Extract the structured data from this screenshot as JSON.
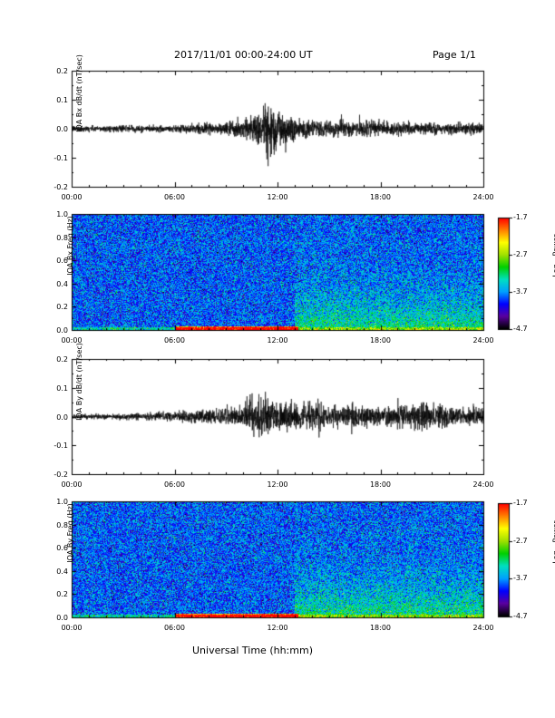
{
  "header": {
    "title": "2017/11/01  00:00-24:00 UT",
    "page": "Page 1/1"
  },
  "footer": {
    "xlabel": "Universal Time (hh:mm)",
    "side_note": "sm1-x1 Wed 23 Aug 2023 09:58:25 PM EST"
  },
  "colorbar": {
    "label": "Log₁₀ Power",
    "ticks": [
      "-1.7",
      "-2.7",
      "-3.7",
      "-4.7"
    ],
    "colors": [
      "#000000",
      "#5a00a0",
      "#0000ff",
      "#00a0ff",
      "#00e0c0",
      "#00d000",
      "#a0e000",
      "#ffff00",
      "#ff8000",
      "#ff0000"
    ]
  },
  "chart_data": [
    {
      "type": "line",
      "title": "",
      "ylabel": "IQA Bx dB/dt (nT/sec)",
      "xlabel": "",
      "x_ticks": [
        "00:00",
        "06:00",
        "12:00",
        "18:00",
        "24:00"
      ],
      "xlim_hours": [
        0,
        24
      ],
      "y_ticks": [
        "0.2",
        "0.1",
        "0.0",
        "-0.1",
        "-0.2"
      ],
      "ylim": [
        -0.2,
        0.2
      ],
      "envelope": {
        "hours": [
          0,
          2,
          4,
          6,
          8,
          9,
          10,
          10.5,
          11,
          11.5,
          12,
          12.5,
          13,
          14,
          15,
          16,
          17,
          18,
          19,
          20,
          21,
          22,
          23,
          24
        ],
        "amplitude": [
          0.012,
          0.012,
          0.012,
          0.014,
          0.018,
          0.025,
          0.035,
          0.06,
          0.08,
          0.1,
          0.09,
          0.07,
          0.05,
          0.03,
          0.03,
          0.03,
          0.03,
          0.028,
          0.025,
          0.025,
          0.022,
          0.022,
          0.02,
          0.02
        ]
      },
      "color": "#000000"
    },
    {
      "type": "heatmap",
      "ylabel": "IQA Bx Freq (Hz)",
      "x_ticks": [
        "00:00",
        "06:00",
        "12:00",
        "18:00",
        "24:00"
      ],
      "xlim_hours": [
        0,
        24
      ],
      "y_ticks": [
        "1.0",
        "0.8",
        "0.6",
        "0.4",
        "0.2",
        "0.0"
      ],
      "ylim": [
        0,
        1.0
      ],
      "zlim": [
        -4.7,
        -1.7
      ],
      "features": [
        {
          "hours": [
            6,
            13
          ],
          "freq": [
            0,
            0.03
          ],
          "log_power": -2.0
        },
        {
          "hours": [
            13,
            24
          ],
          "freq": [
            0,
            0.5
          ],
          "log_power": -3.0
        },
        {
          "hours": [
            0,
            24
          ],
          "freq": [
            0,
            1.0
          ],
          "log_power": -3.8
        }
      ]
    },
    {
      "type": "line",
      "title": "",
      "ylabel": "IQA By dB/dt (nT/sec)",
      "xlabel": "",
      "x_ticks": [
        "00:00",
        "06:00",
        "12:00",
        "18:00",
        "24:00"
      ],
      "xlim_hours": [
        0,
        24
      ],
      "y_ticks": [
        "0.2",
        "0.1",
        "0.0",
        "-0.1",
        "-0.2"
      ],
      "ylim": [
        -0.2,
        0.2
      ],
      "envelope": {
        "hours": [
          0,
          2,
          4,
          6,
          8,
          9,
          10,
          10.5,
          11,
          11.5,
          12,
          12.5,
          13,
          14,
          15,
          16,
          17,
          18,
          19,
          20,
          21,
          22,
          23,
          24
        ],
        "amplitude": [
          0.01,
          0.01,
          0.012,
          0.018,
          0.025,
          0.035,
          0.045,
          0.07,
          0.09,
          0.06,
          0.05,
          0.06,
          0.06,
          0.05,
          0.045,
          0.045,
          0.04,
          0.04,
          0.05,
          0.06,
          0.05,
          0.04,
          0.035,
          0.03
        ]
      },
      "color": "#000000"
    },
    {
      "type": "heatmap",
      "ylabel": "IQA By Freq (Hz)",
      "x_ticks": [
        "00:00",
        "06:00",
        "12:00",
        "18:00",
        "24:00"
      ],
      "xlim_hours": [
        0,
        24
      ],
      "y_ticks": [
        "1.0",
        "0.8",
        "0.6",
        "0.4",
        "0.2",
        "0.0"
      ],
      "ylim": [
        0,
        1.0
      ],
      "zlim": [
        -4.7,
        -1.7
      ],
      "features": [
        {
          "hours": [
            6,
            13
          ],
          "freq": [
            0,
            0.03
          ],
          "log_power": -2.3
        },
        {
          "hours": [
            13,
            24
          ],
          "freq": [
            0,
            0.5
          ],
          "log_power": -3.0
        },
        {
          "hours": [
            0,
            24
          ],
          "freq": [
            0,
            1.0
          ],
          "log_power": -3.8
        }
      ]
    }
  ]
}
